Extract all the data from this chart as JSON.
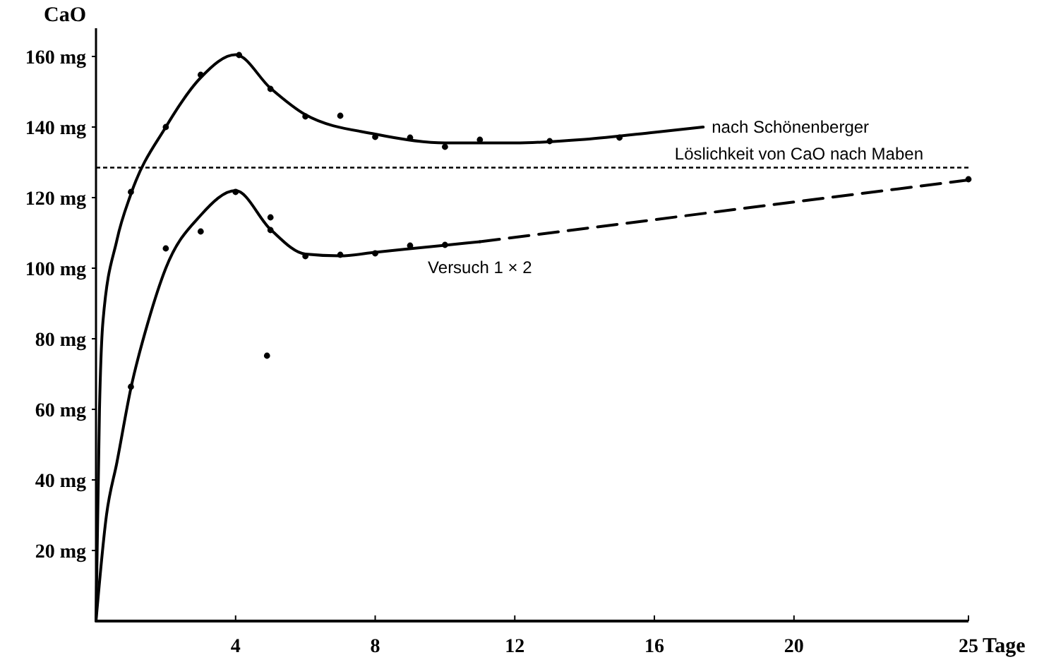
{
  "chart_data": {
    "type": "line",
    "ylabel": "CaO",
    "xlabel": "Tage",
    "xlim": [
      0,
      25
    ],
    "ylim": [
      0,
      168
    ],
    "xticks": [
      4,
      8,
      12,
      16,
      20,
      25
    ],
    "yticks": [
      {
        "value": 20,
        "label": "20 mg"
      },
      {
        "value": 40,
        "label": "40 mg"
      },
      {
        "value": 60,
        "label": "60 mg"
      },
      {
        "value": 80,
        "label": "80 mg"
      },
      {
        "value": 100,
        "label": "100 mg"
      },
      {
        "value": 120,
        "label": "120 mg"
      },
      {
        "value": 140,
        "label": "140 mg"
      },
      {
        "value": 160,
        "label": "160 mg"
      }
    ],
    "grid": false,
    "ref_lines": [
      {
        "axis": "y",
        "value": 128.5,
        "label": "Löslichkeit von CaO nach Maben",
        "color": "#000000",
        "line_style": "dotted"
      }
    ],
    "series": [
      {
        "name": "nach Schönenberger",
        "color": "#000000",
        "line_style": "solid",
        "marker": "none",
        "x": [
          0,
          0.1,
          0.2,
          0.6,
          1,
          2,
          3,
          4,
          5,
          6,
          8,
          10,
          12,
          14,
          16,
          17.4
        ],
        "values": [
          0,
          60,
          85,
          108,
          121,
          140,
          154,
          160.5,
          151,
          143.5,
          138,
          135.5,
          135.5,
          136.5,
          138.5,
          140
        ]
      },
      {
        "name": "Versuch 1 × 2",
        "color": "#000000",
        "line_style": "solid",
        "marker": "none",
        "x": [
          0,
          0.3,
          0.6,
          1,
          1.5,
          2,
          3,
          4,
          5,
          6,
          7,
          8,
          10,
          11
        ],
        "values": [
          0,
          30,
          45,
          66,
          85,
          100,
          115,
          122,
          111,
          104,
          103.5,
          104.5,
          106.5,
          107.5
        ]
      },
      {
        "color": "#000000",
        "line_style": "dashed",
        "marker": "none",
        "x": [
          11,
          25
        ],
        "values": [
          107.5,
          125
        ]
      },
      {
        "type": "scatter",
        "color": "#000000",
        "marker": "circle",
        "x": [
          1,
          2,
          3,
          4.1,
          5,
          6,
          7,
          8,
          9,
          10,
          11,
          13,
          15
        ],
        "values": [
          121.6,
          140,
          154.8,
          160.4,
          150.8,
          143,
          143.2,
          137.2,
          137,
          134.4,
          136.4,
          136,
          137
        ]
      },
      {
        "type": "scatter",
        "color": "#000000",
        "marker": "circle",
        "x": [
          1,
          2,
          3,
          4,
          5,
          5,
          4.9,
          6,
          7,
          8,
          9,
          10,
          25
        ],
        "values": [
          66.4,
          105.6,
          110.4,
          121.6,
          114.4,
          110.8,
          75.2,
          103.4,
          103.8,
          104.2,
          106.4,
          106.6,
          125.2
        ]
      }
    ]
  }
}
